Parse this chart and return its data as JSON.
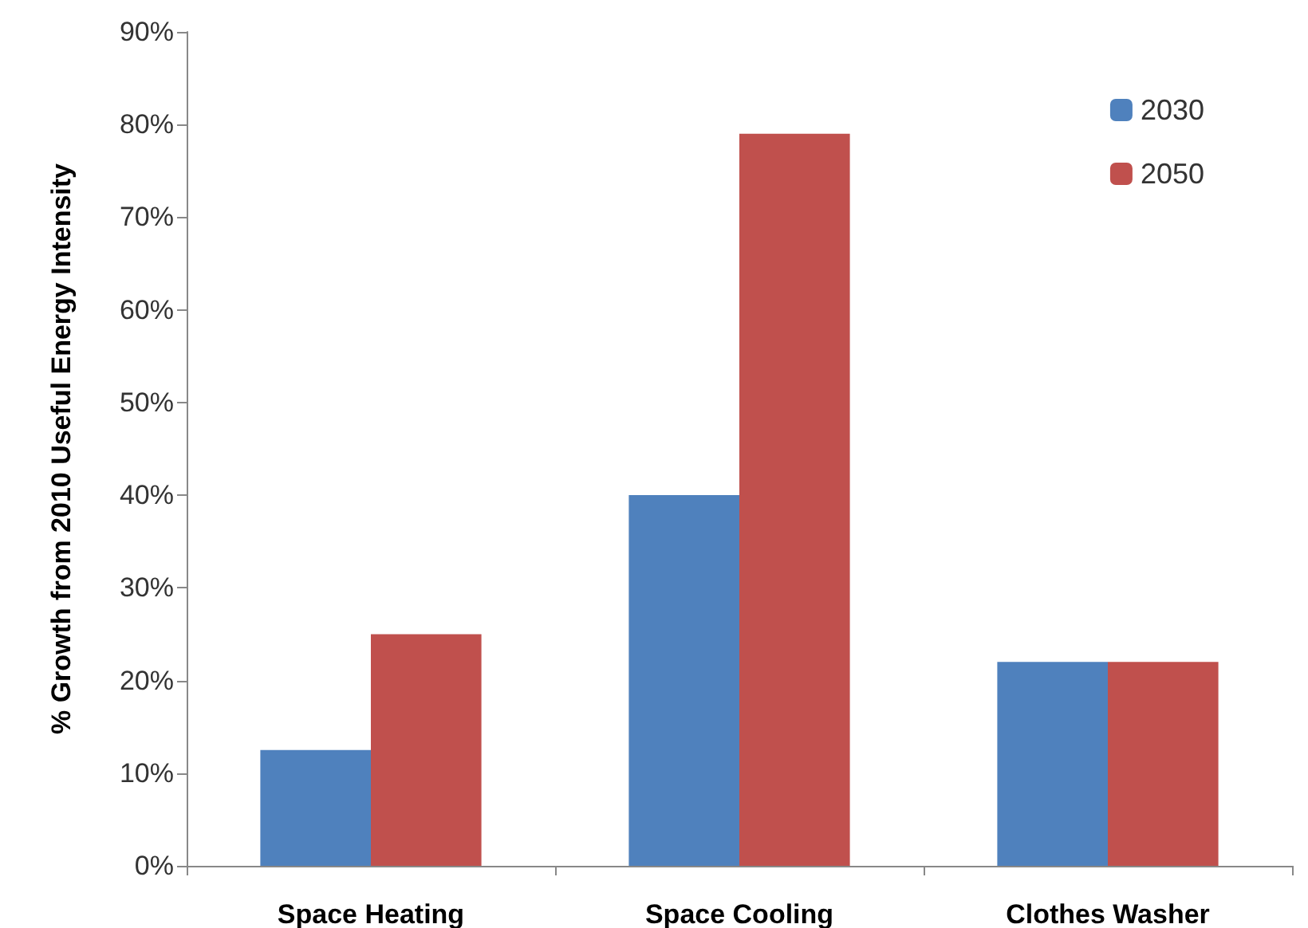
{
  "chart_data": {
    "type": "bar",
    "ylabel": "% Growth from 2010 Useful Energy Intensity",
    "categories": [
      "Space Heating",
      "Space Cooling",
      "Clothes Washer"
    ],
    "series": [
      {
        "name": "2030",
        "color": "#4f81bd",
        "values": [
          12.5,
          40,
          22
        ]
      },
      {
        "name": "2050",
        "color": "#c0504d",
        "values": [
          25,
          79,
          22
        ]
      }
    ],
    "ylim": [
      0,
      90
    ],
    "yticks": [
      {
        "value": 0,
        "label": "0%"
      },
      {
        "value": 10,
        "label": "10%"
      },
      {
        "value": 20,
        "label": "20%"
      },
      {
        "value": 30,
        "label": "30%"
      },
      {
        "value": 40,
        "label": "40%"
      },
      {
        "value": 50,
        "label": "50%"
      },
      {
        "value": 60,
        "label": "60%"
      },
      {
        "value": 70,
        "label": "70%"
      },
      {
        "value": 80,
        "label": "80%"
      },
      {
        "value": 90,
        "label": "90%"
      }
    ],
    "grid": false,
    "legend": "top right"
  }
}
